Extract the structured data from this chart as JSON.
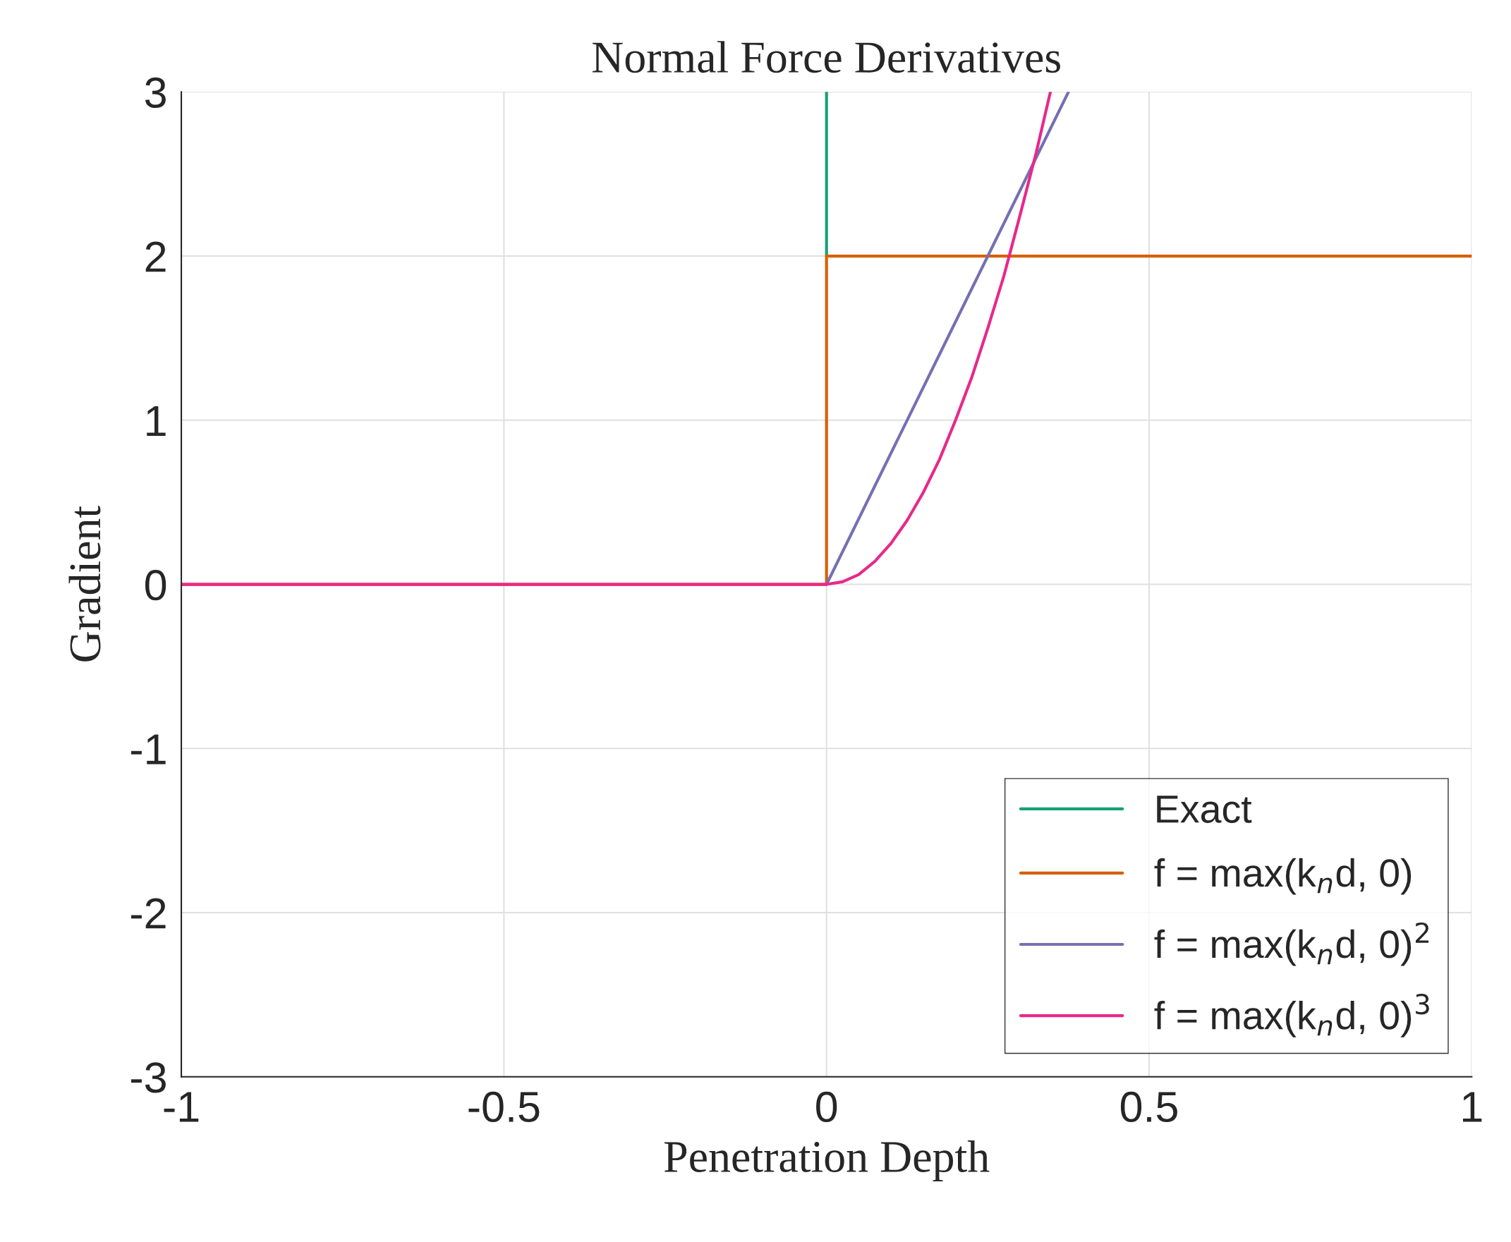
{
  "chart_data": {
    "type": "line",
    "title": "Normal Force Derivatives",
    "xlabel": "Penetration Depth",
    "ylabel": "Gradient",
    "xlim": [
      -1,
      1
    ],
    "ylim": [
      -3,
      3
    ],
    "xticks": [
      -1,
      -0.5,
      0,
      0.5,
      1
    ],
    "yticks": [
      -3,
      -2,
      -1,
      0,
      1,
      2,
      3
    ],
    "grid": true,
    "legend": "bottom right",
    "series": [
      {
        "name": "Exact",
        "color": "#1b9e77",
        "x": [
          0,
          0
        ],
        "values": [
          2,
          3
        ]
      },
      {
        "name": "f = max(k$_{n}$d, 0)",
        "color": "#d95f02",
        "x": [
          -1,
          0,
          0,
          1
        ],
        "values": [
          0,
          0,
          2,
          2
        ]
      },
      {
        "name": "f = max(k$_{n}$d, 0)$^{2}$",
        "color": "#7570b3",
        "x": [
          0,
          0.375
        ],
        "values": [
          0,
          3
        ]
      },
      {
        "name": "f = max(k$_{n}$d, 0)$^{3}$",
        "color": "#e7298a",
        "x": [
          -1,
          0,
          0.025,
          0.05,
          0.075,
          0.1,
          0.125,
          0.15,
          0.175,
          0.2,
          0.225,
          0.25,
          0.275,
          0.3,
          0.325,
          0.347
        ],
        "values": [
          0,
          0,
          0.016,
          0.06,
          0.14,
          0.25,
          0.39,
          0.56,
          0.76,
          1.0,
          1.26,
          1.56,
          1.88,
          2.25,
          2.63,
          3.0
        ]
      }
    ]
  }
}
